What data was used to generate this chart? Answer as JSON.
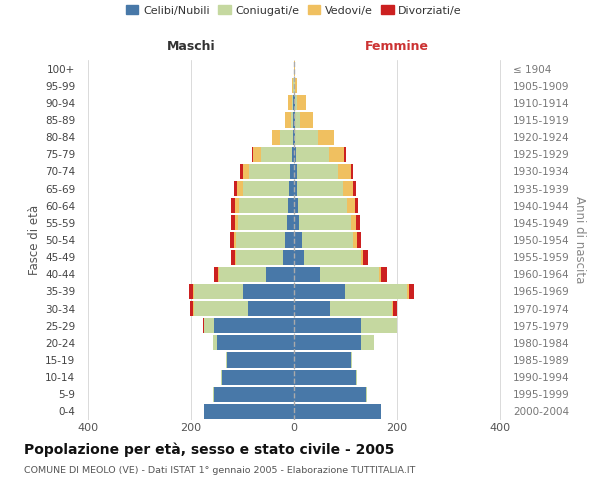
{
  "age_groups": [
    "0-4",
    "5-9",
    "10-14",
    "15-19",
    "20-24",
    "25-29",
    "30-34",
    "35-39",
    "40-44",
    "45-49",
    "50-54",
    "55-59",
    "60-64",
    "65-69",
    "70-74",
    "75-79",
    "80-84",
    "85-89",
    "90-94",
    "95-99",
    "100+"
  ],
  "birth_years": [
    "2000-2004",
    "1995-1999",
    "1990-1994",
    "1985-1989",
    "1980-1984",
    "1975-1979",
    "1970-1974",
    "1965-1969",
    "1960-1964",
    "1955-1959",
    "1950-1954",
    "1945-1949",
    "1940-1944",
    "1935-1939",
    "1930-1934",
    "1925-1929",
    "1920-1924",
    "1915-1919",
    "1910-1914",
    "1905-1909",
    "≤ 1904"
  ],
  "colors": {
    "celibi": "#4878a8",
    "coniugati": "#c5d8a0",
    "vedovi": "#f0c060",
    "divorziati": "#cc2020"
  },
  "males": {
    "celibi": [
      175,
      155,
      140,
      130,
      150,
      155,
      90,
      100,
      55,
      22,
      18,
      14,
      12,
      10,
      8,
      4,
      2,
      1,
      1,
      0,
      0
    ],
    "coniugati": [
      0,
      2,
      2,
      2,
      8,
      20,
      105,
      95,
      90,
      90,
      95,
      95,
      95,
      90,
      80,
      60,
      25,
      5,
      3,
      1,
      0
    ],
    "vedovi": [
      0,
      0,
      0,
      0,
      0,
      0,
      2,
      2,
      2,
      3,
      4,
      5,
      8,
      10,
      12,
      15,
      15,
      12,
      8,
      2,
      0
    ],
    "divorziati": [
      0,
      0,
      0,
      0,
      0,
      2,
      5,
      8,
      8,
      8,
      7,
      8,
      8,
      7,
      5,
      2,
      0,
      0,
      0,
      0,
      0
    ]
  },
  "females": {
    "celibi": [
      170,
      140,
      120,
      110,
      130,
      130,
      70,
      100,
      50,
      20,
      15,
      10,
      8,
      5,
      5,
      3,
      2,
      1,
      1,
      0,
      0
    ],
    "coniugati": [
      0,
      2,
      2,
      2,
      25,
      70,
      120,
      120,
      115,
      110,
      100,
      100,
      95,
      90,
      80,
      65,
      45,
      10,
      5,
      1,
      0
    ],
    "vedovi": [
      0,
      0,
      0,
      0,
      0,
      0,
      3,
      3,
      4,
      5,
      8,
      10,
      15,
      20,
      25,
      30,
      30,
      25,
      18,
      5,
      1
    ],
    "divorziati": [
      0,
      0,
      0,
      0,
      0,
      0,
      8,
      10,
      12,
      8,
      7,
      8,
      7,
      5,
      5,
      3,
      0,
      0,
      0,
      0,
      0
    ]
  },
  "title": "Popolazione per età, sesso e stato civile - 2005",
  "subtitle": "COMUNE DI MEOLO (VE) - Dati ISTAT 1° gennaio 2005 - Elaborazione TUTTITALIA.IT",
  "xlabel_left": "Maschi",
  "xlabel_right": "Femmine",
  "ylabel_left": "Fasce di età",
  "ylabel_right": "Anni di nascita",
  "xlim": 420,
  "background_color": "#ffffff",
  "legend_labels": [
    "Celibi/Nubili",
    "Coniugati/e",
    "Vedovi/e",
    "Divorziati/e"
  ]
}
